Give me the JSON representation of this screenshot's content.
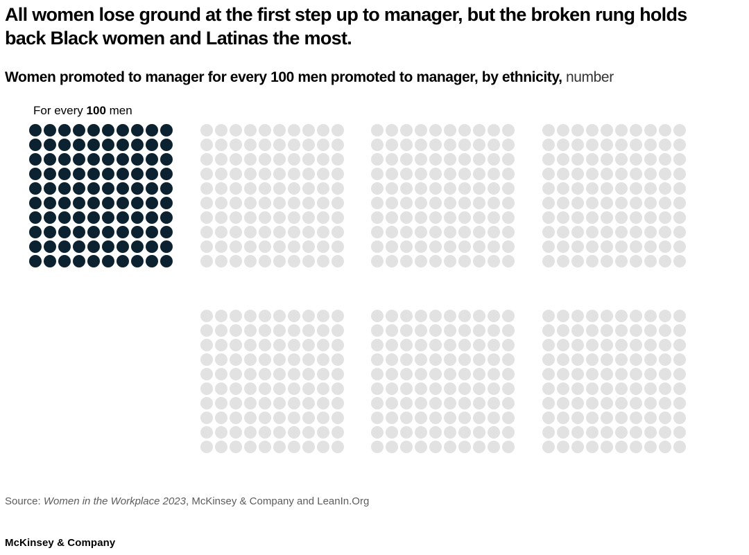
{
  "header": {
    "title": "All women lose ground at the first step up to manager, but the broken rung holds back Black women and Latinas the most.",
    "subtitle_bold": "Women promoted to manager for every 100 men promoted to manager, by ethnicity,",
    "subtitle_unit": " number"
  },
  "chart_data": {
    "type": "waffle",
    "title": "All women lose ground at the first step up to manager, but the broken rung holds back Black women and Latinas the most.",
    "subtitle": "Women promoted to manager for every 100 men promoted to manager, by ethnicity, number",
    "legend": {
      "prefix": "For every ",
      "value": "100",
      "suffix": " men"
    },
    "legend_position": "top-left",
    "grid_rows": 10,
    "grid_cols": 10,
    "dots_per_grid": 100,
    "grids": [
      {
        "id": "reference-100-men",
        "row": 0,
        "col": 0,
        "filled": 100
      },
      {
        "id": "grid-row1-col2",
        "row": 0,
        "col": 1,
        "filled": 0
      },
      {
        "id": "grid-row1-col3",
        "row": 0,
        "col": 2,
        "filled": 0
      },
      {
        "id": "grid-row1-col4",
        "row": 0,
        "col": 3,
        "filled": 0
      },
      {
        "id": "grid-row2-col2",
        "row": 1,
        "col": 1,
        "filled": 0
      },
      {
        "id": "grid-row2-col3",
        "row": 1,
        "col": 2,
        "filled": 0
      },
      {
        "id": "grid-row2-col4",
        "row": 1,
        "col": 3,
        "filled": 0
      }
    ],
    "colors": {
      "filled_dot": "#0c2231",
      "empty_dot": "#e2e2e2"
    }
  },
  "source": {
    "prefix": "Source: ",
    "publication": "Women in the Workplace 2023",
    "suffix": ", McKinsey & Company and LeanIn.Org"
  },
  "footer": {
    "brand": "McKinsey & Company"
  }
}
